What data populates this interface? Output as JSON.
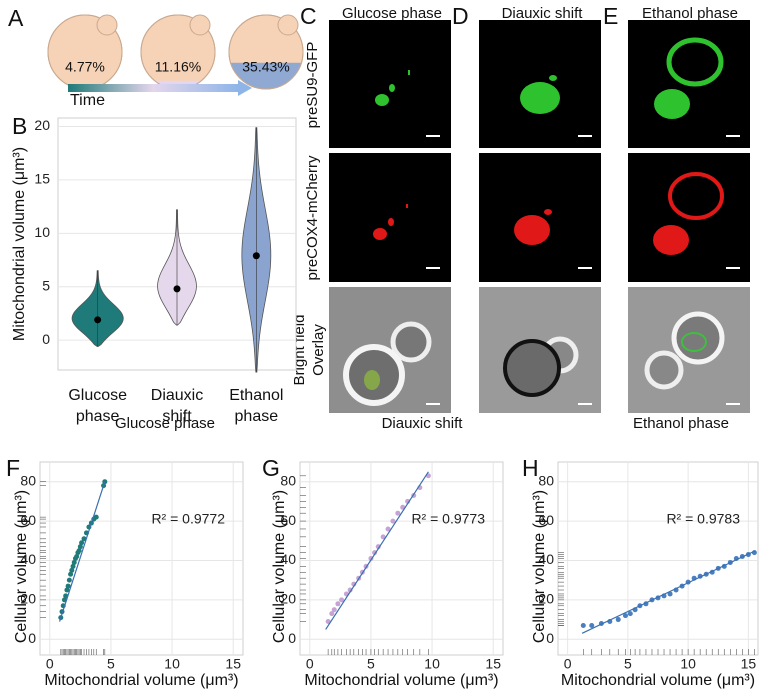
{
  "panel_a": {
    "label": "A",
    "cells": [
      {
        "value": 4.77,
        "label": "4.77%"
      },
      {
        "value": 11.16,
        "label": "11.16%"
      },
      {
        "value": 35.43,
        "label": "35.43%"
      }
    ],
    "colors": [
      "#1f7a78",
      "#e4d6ec",
      "#8fa9d3"
    ],
    "cell_color": "#f6d2b6",
    "arrow_label": "Time"
  },
  "microscopy": {
    "labels": [
      "C",
      "D",
      "E"
    ],
    "columns": [
      "Glucose phase",
      "Diauxic shift",
      "Ethanol phase"
    ],
    "rows": [
      "preSU9-GFP",
      "preCOX4-mCherry",
      [
        "Bright field",
        "Overlay"
      ]
    ]
  },
  "chart_data": [
    {
      "type": "violin",
      "label": "B",
      "ylabel": "Mitochondrial volume (μm³)",
      "categories": [
        "Glucose phase",
        "Diauxic shift",
        "Ethanol phase"
      ],
      "values": [
        1.9,
        4.8,
        7.9
      ],
      "mins": [
        -0.6,
        1.4,
        -3.0
      ],
      "maxs": [
        6.5,
        12.2,
        19.9
      ],
      "colors": [
        "#1f7a7a",
        "#e6d8ec",
        "#8aa4cf"
      ],
      "ylim": [
        -2.8,
        20.8
      ],
      "yticks": [
        0,
        5,
        10,
        15,
        20
      ],
      "grid": true
    },
    {
      "type": "scatter",
      "label": "F",
      "title": "Glucose phase",
      "xlabel": "Mitochondrial volume (μm³)",
      "ylabel": "Cellular volume (μm³)",
      "x": [
        0.9,
        1.0,
        1.1,
        1.2,
        1.3,
        1.4,
        1.5,
        1.6,
        1.7,
        1.8,
        1.9,
        2.0,
        2.1,
        2.2,
        2.3,
        2.4,
        2.5,
        2.6,
        2.8,
        3.0,
        3.2,
        3.4,
        3.6,
        3.8,
        4.4,
        4.5
      ],
      "values": [
        11,
        14,
        17,
        20,
        22,
        25,
        27,
        30,
        33,
        35,
        37,
        39,
        41,
        42,
        44,
        45,
        47,
        49,
        51,
        54,
        57,
        59,
        61,
        62,
        78,
        80
      ],
      "color": "#1f7a78",
      "fit_x": [
        0.8,
        4.5
      ],
      "fit_y": [
        9,
        80
      ],
      "annotation": "R² = 0.9772",
      "xlim": [
        -0.8,
        15.8
      ],
      "ylim": [
        -8,
        90
      ],
      "xticks": [
        0,
        5,
        10,
        15
      ],
      "yticks": [
        0,
        20,
        40,
        60,
        80
      ],
      "grid": true
    },
    {
      "type": "scatter",
      "label": "G",
      "title": "Diauxic shift",
      "xlabel": "Mitochondrial volume (μm³)",
      "ylabel": "Cellular volume (μm³)",
      "x": [
        1.5,
        1.8,
        2.0,
        2.3,
        2.6,
        3.0,
        3.3,
        3.6,
        4.0,
        4.3,
        4.6,
        5.0,
        5.3,
        5.6,
        6.0,
        6.4,
        6.8,
        7.2,
        7.6,
        8.0,
        8.5,
        9.0,
        9.7
      ],
      "values": [
        9,
        13,
        15,
        18,
        20,
        23,
        25,
        28,
        31,
        34,
        37,
        41,
        44,
        47,
        52,
        56,
        60,
        64,
        67,
        70,
        73,
        77,
        83
      ],
      "color": "#c6a3d4",
      "fit_x": [
        1.3,
        9.7
      ],
      "fit_y": [
        5,
        85
      ],
      "annotation": "R² = 0.9773",
      "xlim": [
        -0.8,
        15.8
      ],
      "ylim": [
        -8,
        90
      ],
      "xticks": [
        0,
        5,
        10,
        15
      ],
      "yticks": [
        0,
        20,
        40,
        60,
        80
      ],
      "grid": true
    },
    {
      "type": "scatter",
      "label": "H",
      "title": "Ethanol phase",
      "xlabel": "Mitochondrial volume (μm³)",
      "ylabel": "Cellular volume (μm³)",
      "x": [
        1.3,
        2.0,
        2.8,
        3.5,
        4.2,
        4.8,
        5.2,
        5.6,
        6.0,
        6.5,
        7.0,
        7.5,
        8.0,
        8.5,
        9.0,
        9.5,
        10.0,
        10.5,
        11.0,
        11.5,
        12.0,
        12.5,
        13.0,
        13.5,
        14.0,
        14.5,
        15.0,
        15.5
      ],
      "values": [
        7,
        7,
        8,
        9,
        10,
        12,
        13,
        15,
        17,
        18,
        20,
        21,
        22,
        23,
        25,
        27,
        29,
        31,
        32,
        33,
        34,
        36,
        37,
        39,
        41,
        42,
        43,
        44
      ],
      "color": "#4a7fc0",
      "fit_x": [
        1.2,
        15.6
      ],
      "fit_y": [
        3,
        45
      ],
      "annotation": "R² = 0.9783",
      "xlim": [
        -0.8,
        15.8
      ],
      "ylim": [
        -8,
        90
      ],
      "xticks": [
        0,
        5,
        10,
        15
      ],
      "yticks": [
        0,
        20,
        40,
        60,
        80
      ],
      "grid": true
    }
  ]
}
